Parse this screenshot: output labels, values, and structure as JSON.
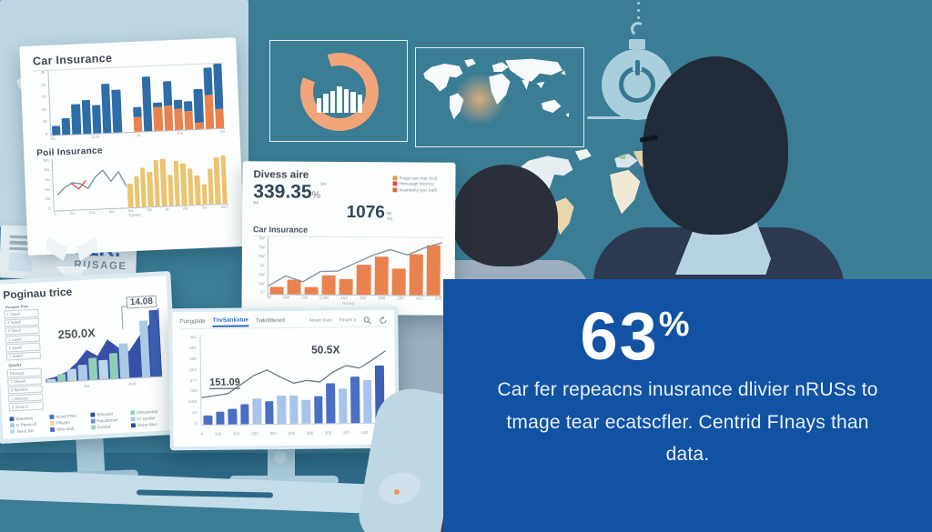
{
  "palette": {
    "background": "#3a7d95",
    "stat_blue": "#1252a3",
    "accent_orange": "#f0a478",
    "bar_blue": "#2e6da8",
    "bar_orange": "#e8834f",
    "panel_light": "#bdd6e1",
    "desk": "#c5dde8"
  },
  "stat_box": {
    "number": "63",
    "percent": "%",
    "lines": [
      "Car fer repeacns inusrance dlivier nRUSs to",
      "tmage tear ecatscfler. Centrid FInays than",
      "data."
    ]
  },
  "top_left_card": {
    "title1": "Car Insurance",
    "title2": "Poil Insurance"
  },
  "mid_card": {
    "title": "Divess aire",
    "stat1": "339.35",
    "stat1_unit": "%",
    "stat1_note": "Dv 6d",
    "stat2": "1076",
    "stat2_note1": "5K",
    "stat2_note2": "7%",
    "chart_title": "Car Insurance",
    "legend": [
      {
        "label": "Fvrget tars mar (nuf)",
        "color": "#e29a3c"
      },
      {
        "label": "Honvaugh fonznes",
        "color": "#cf4f42"
      },
      {
        "label": "Insamtohy tync (raff)",
        "color": "#e06a38"
      }
    ]
  },
  "usage_card": {
    "value": "31K.",
    "label": "RUSAGE"
  },
  "monitor1": {
    "title": "Poginau trice",
    "annotation_big": "250.0X",
    "annotation_box": "14.08",
    "sidebar_group1": [
      "Pvsawr Prw",
      "1 Sawtl",
      "4 Sdwill",
      "4 Sawrl",
      "1 Uawrl",
      "4 Sawtl",
      "1 Sdatrl"
    ],
    "sidebar_group2": [
      "Qvwtrt",
      "Plvwqat",
      "7 Okwoll",
      "2 Spwass",
      "1 Dkwoat",
      "2 Swapol"
    ],
    "legend": [
      {
        "label": "Busawee",
        "color": "#3b5fb0"
      },
      {
        "label": "Icusd Pnec",
        "color": "#4a6fc4"
      },
      {
        "label": "Tetsyastt",
        "color": "#2e4f9e"
      },
      {
        "label": "Ohtcyxntad",
        "color": "#8fd0c2"
      },
      {
        "label": "Iv Ptewculf",
        "color": "#a9cbe4"
      },
      {
        "label": "Plityser",
        "color": "#f2d9a2"
      },
      {
        "label": "Hacattmset",
        "color": "#6f94d2"
      },
      {
        "label": "Ur systkw",
        "color": "#a9cbe4"
      },
      {
        "label": "Tervd fiat",
        "color": "#bcd8e8"
      },
      {
        "label": "Wrw aedt",
        "color": "#4a6fc4"
      },
      {
        "label": "Scrotat",
        "color": "#9fd4c0"
      },
      {
        "label": "Ansyr fdrvr",
        "color": "#2e4f9e"
      }
    ]
  },
  "monitor2": {
    "tabs": [
      "Punggtide",
      "TnvSankatue",
      "Twkitittered"
    ],
    "menu_right": [
      "Amatr trias",
      "Finum a"
    ],
    "annotation1": "151.09",
    "annotation2": "50.5X"
  },
  "chart_data": [
    {
      "name": "car-insurance-stacked-bars",
      "type": "bar",
      "title": "Car Insurance",
      "bars": [
        14,
        26,
        46,
        52,
        44,
        76,
        66,
        0,
        38,
        84,
        44,
        76,
        46,
        44,
        62,
        94,
        100
      ],
      "bars2": [
        0,
        0,
        0,
        0,
        0,
        0,
        0,
        0,
        22,
        0,
        36,
        38,
        32,
        28,
        10,
        52,
        30
      ],
      "barColor": "#2e6da8",
      "bar2Color": "#e8834f",
      "gap": 1,
      "yticks": [
        "2k",
        "1k",
        "7h",
        "5h",
        "2h",
        "0"
      ],
      "xticks": [
        "3u",
        "E3u",
        "Ju",
        "Fw",
        "Du"
      ]
    },
    {
      "name": "poil-insurance-line-bars",
      "type": "bar+line",
      "title": "Poil Insurance",
      "bars": [
        45,
        58,
        75,
        65,
        88,
        90,
        58,
        85,
        80,
        70,
        55,
        38,
        68,
        88,
        92
      ],
      "barColor": "#ecc36e",
      "gap": 1,
      "barsLeft": 42,
      "barsSpan": 58,
      "lines": [
        {
          "v": [
            30,
            44,
            52,
            50,
            40,
            62,
            74,
            52,
            70,
            40
          ],
          "color": "#7a93a8",
          "w": 1.4,
          "left": 2,
          "span": 40
        },
        {
          "v": [
            52,
            40,
            56
          ],
          "color": "#d9534f",
          "w": 1.4,
          "left": 10,
          "span": 9
        }
      ],
      "yticks": [
        "9m",
        "8a",
        "6u",
        "4w",
        "2w",
        "0"
      ],
      "xticks": [
        "0",
        "1w",
        "11y",
        "4w",
        "6w",
        "0d",
        "af",
        "2w",
        "7w",
        "2w7"
      ],
      "caption": "Tyvwrc"
    },
    {
      "name": "car-insurance-orange",
      "type": "bar+line",
      "title": "Car Insurance",
      "bars": [
        12,
        25,
        12,
        34,
        27,
        52,
        66,
        46,
        72,
        87
      ],
      "barColor": "#e8834f",
      "gap": 2,
      "lines": [
        {
          "v": [
            14,
            32,
            22,
            40,
            41,
            55,
            69,
            79,
            70,
            83,
            92
          ],
          "color": "#8795a3",
          "w": 1.4
        }
      ],
      "yticks": [
        "9W",
        "7W",
        "5W",
        "3A",
        "2W",
        "1W",
        "1J"
      ],
      "xticks": [
        "W",
        "AW",
        "2W",
        "C3W",
        "157",
        "19J",
        "206",
        "230",
        "A0J",
        "205"
      ],
      "caption": "Nw-kd"
    },
    {
      "name": "poginau-area-bars",
      "type": "area+bar",
      "areas": [
        {
          "v": [
            4,
            7,
            13,
            25,
            42,
            33,
            55,
            43,
            37,
            57,
            72,
            96
          ],
          "color": "#3a50a8"
        }
      ],
      "bars": [
        4,
        10,
        16,
        22,
        30,
        26,
        36,
        48,
        0,
        78,
        92
      ],
      "barColors": [
        "#bcd8e8",
        "#8fd0b5",
        "#bcd8e8",
        "#a9cbe4",
        "#8fd0b5",
        "#bcd8e8",
        "#8fd0b5",
        "#a9cbe4",
        "#a9cbe4",
        "#a9cbe4",
        "#3b5fb0"
      ],
      "gap": 1,
      "xticks": [
        "Aw",
        "Jwd"
      ]
    },
    {
      "name": "trend-bars",
      "type": "bar+line",
      "bars": [
        10,
        14,
        17,
        22,
        28,
        25,
        31,
        31,
        26,
        30,
        44,
        38,
        52,
        47,
        64
      ],
      "barColors": [
        "#4a6fc4",
        "#4a6fc4",
        "#4a6fc4",
        "#4a6fc4",
        "#a9c4ea",
        "#4a6fc4",
        "#a9c4ea",
        "#a9c4ea",
        "#a9c4ea",
        "#4a6fc4",
        "#4a6fc4",
        "#a9c4ea",
        "#4a6fc4",
        "#a9c4ea",
        "#3e5fb8"
      ],
      "gap": 2,
      "lines": [
        {
          "v": [
            30,
            32,
            34,
            44,
            54,
            60,
            52,
            45,
            48,
            46,
            57,
            64,
            61,
            70,
            80
          ],
          "color": "#6b7886",
          "w": 1.3
        }
      ],
      "yticks": [
        "M1",
        "085",
        "556",
        "31S",
        "377",
        "74A",
        "64W",
        "1A",
        "0"
      ],
      "xticks": [
        "0",
        "100",
        "J0Y",
        "280",
        "304",
        "209",
        "306",
        "305",
        "207",
        "424",
        "280"
      ]
    },
    {
      "name": "donut-inner-bars",
      "type": "bar",
      "bars": [
        38,
        50,
        58,
        68,
        62,
        55,
        48
      ],
      "barColor": "#ffffff",
      "gap": 1
    }
  ]
}
